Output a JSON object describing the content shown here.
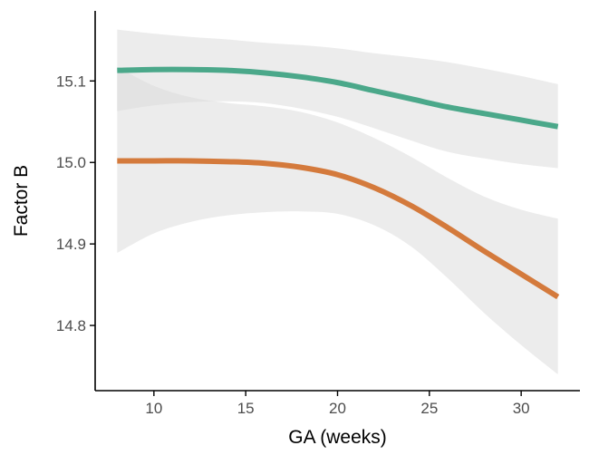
{
  "chart_data": {
    "type": "line",
    "title": "",
    "xlabel": "GA (weeks)",
    "ylabel": "Factor B",
    "xlim": [
      6.8,
      33.2
    ],
    "ylim": [
      14.72,
      15.186
    ],
    "x_ticks": [
      10,
      15,
      20,
      25,
      30
    ],
    "x_tick_labels": [
      "10",
      "15",
      "20",
      "25",
      "30"
    ],
    "y_ticks": [
      14.8,
      14.9,
      15.0,
      15.1
    ],
    "y_tick_labels": [
      "14.8",
      "14.9",
      "15.0",
      "15.1"
    ],
    "grid": false,
    "legend": "none",
    "colors": {
      "band": "#d9d9d9",
      "axis": "#000000",
      "tick_text": "#4d4d4d"
    },
    "series": [
      {
        "color": "#4ba88a",
        "x": [
          8,
          10,
          12,
          14,
          16,
          18,
          20,
          22,
          24,
          26,
          28,
          30,
          32
        ],
        "y": [
          15.113,
          15.114,
          15.114,
          15.113,
          15.11,
          15.105,
          15.098,
          15.088,
          15.078,
          15.068,
          15.06,
          15.052,
          15.044
        ],
        "lower": [
          15.063,
          15.07,
          15.074,
          15.075,
          15.073,
          15.066,
          15.056,
          15.042,
          15.027,
          15.013,
          15.005,
          14.998,
          14.993
        ],
        "upper": [
          15.163,
          15.158,
          15.154,
          15.151,
          15.147,
          15.144,
          15.14,
          15.134,
          15.129,
          15.123,
          15.115,
          15.106,
          15.096
        ]
      },
      {
        "color": "#d47a3c",
        "x": [
          8,
          10,
          12,
          14,
          16,
          18,
          20,
          22,
          24,
          26,
          28,
          30,
          32
        ],
        "y": [
          15.002,
          15.002,
          15.002,
          15.001,
          14.999,
          14.994,
          14.985,
          14.969,
          14.947,
          14.92,
          14.891,
          14.863,
          14.835
        ],
        "lower": [
          14.889,
          14.913,
          14.927,
          14.935,
          14.939,
          14.94,
          14.937,
          14.923,
          14.897,
          14.858,
          14.815,
          14.776,
          14.74
        ],
        "upper": [
          15.117,
          15.094,
          15.08,
          15.073,
          15.069,
          15.062,
          15.049,
          15.03,
          15.007,
          14.981,
          14.958,
          14.942,
          14.931
        ]
      }
    ]
  }
}
